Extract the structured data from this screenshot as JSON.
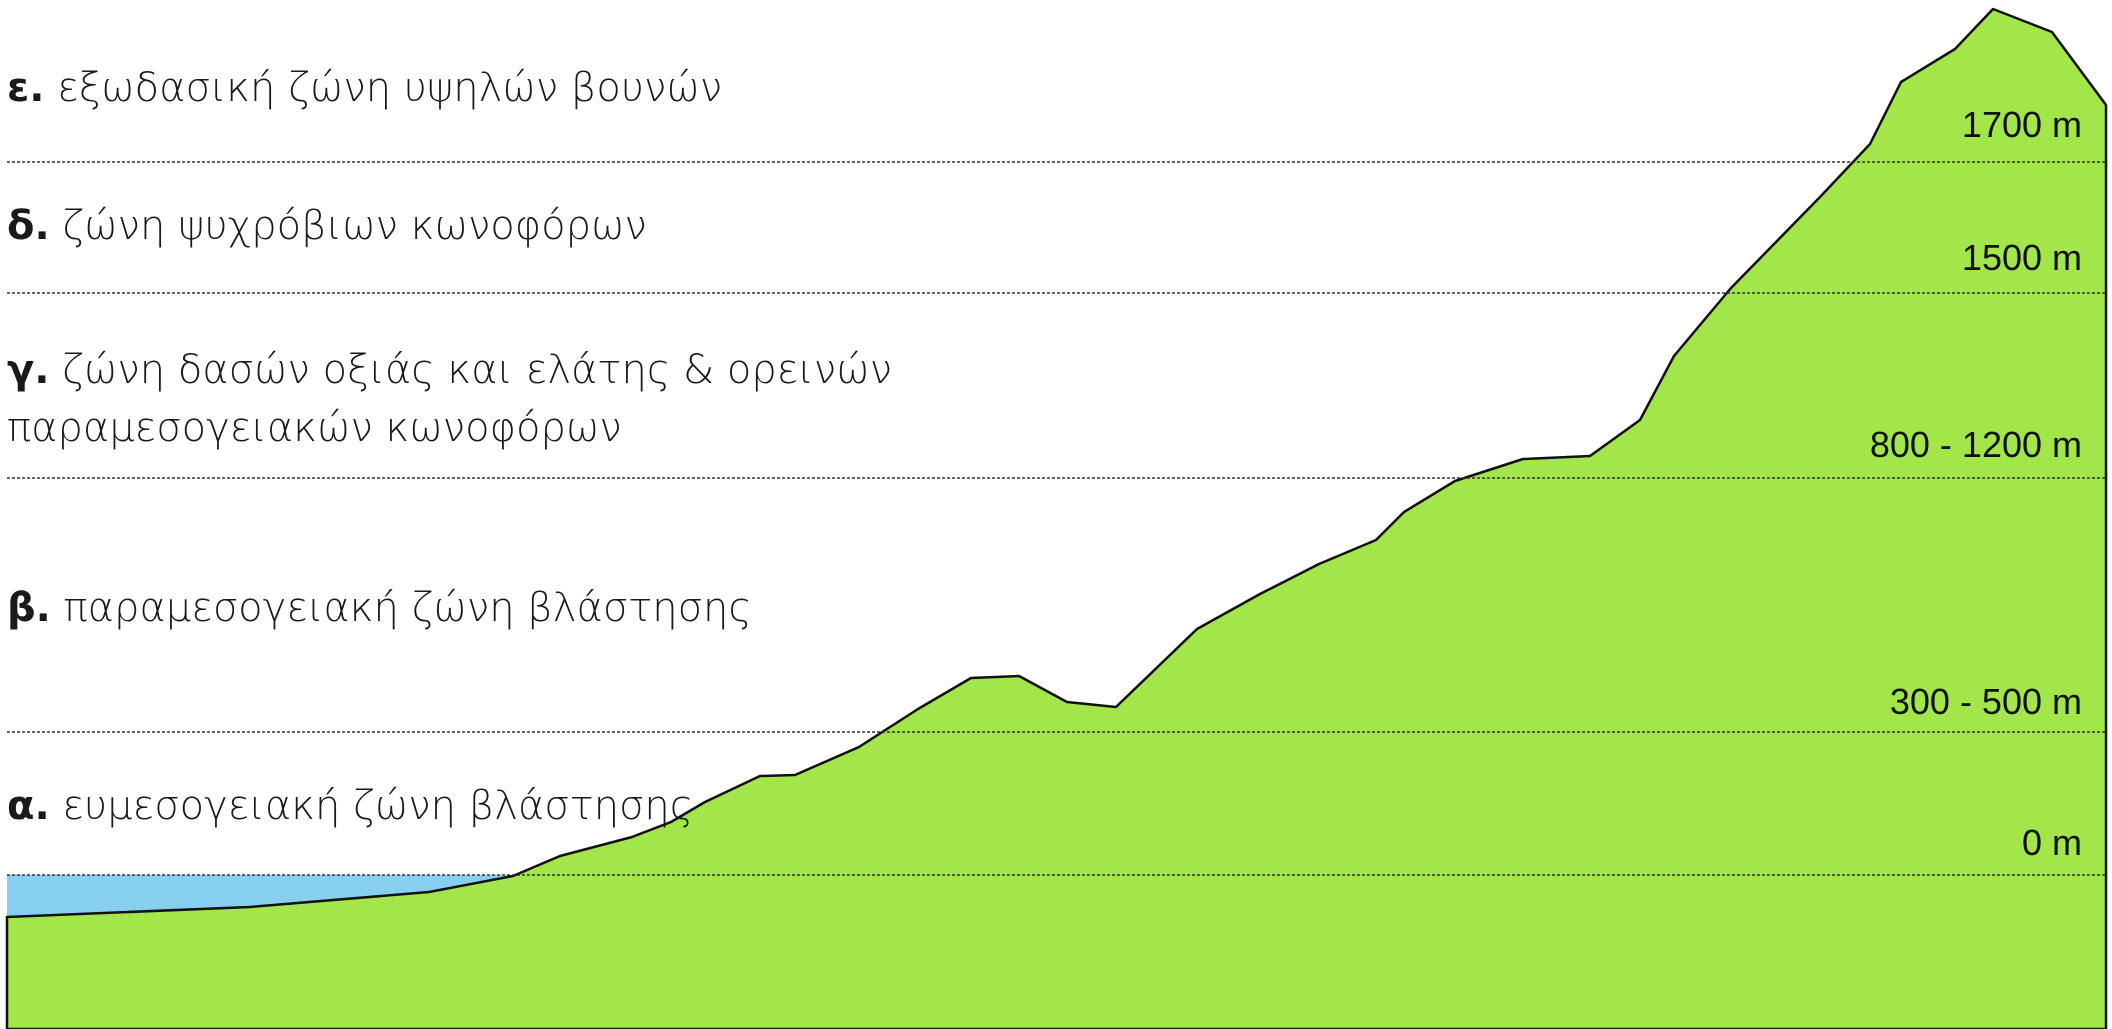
{
  "zones": [
    {
      "letter": "ε.",
      "lines": [
        "εξωδασική ζώνη υψηλών βουνών"
      ],
      "altitude": "1700 m"
    },
    {
      "letter": "δ.",
      "lines": [
        "ζώνη ψυχρόβιων κωνοφόρων"
      ],
      "altitude": "1500 m"
    },
    {
      "letter": "γ.",
      "lines": [
        "ζώνη δασών οξιάς και ελάτης & ορεινών",
        "παραμεσογειακών κωνοφόρων"
      ],
      "altitude": "800 - 1200 m"
    },
    {
      "letter": "β.",
      "lines": [
        "παραμεσογειακή ζώνη βλάστησης"
      ],
      "altitude": "300 - 500 m"
    },
    {
      "letter": "α.",
      "lines": [
        "ευμεσογειακή ζώνη βλάστησης"
      ],
      "altitude": "0 m"
    }
  ]
}
